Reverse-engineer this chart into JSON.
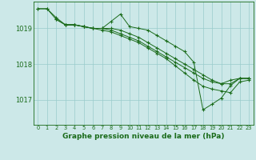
{
  "title": "Graphe pression niveau de la mer (hPa)",
  "bg_color": "#cce8e8",
  "grid_color": "#99cccc",
  "line_color": "#1a6b1a",
  "xlim": [
    -0.5,
    23.5
  ],
  "ylim": [
    1016.3,
    1019.75
  ],
  "yticks": [
    1017,
    1018,
    1019
  ],
  "xticks": [
    0,
    1,
    2,
    3,
    4,
    5,
    6,
    7,
    8,
    9,
    10,
    11,
    12,
    13,
    14,
    15,
    16,
    17,
    18,
    19,
    20,
    21,
    22,
    23
  ],
  "series": [
    {
      "x": [
        0,
        1,
        2,
        3,
        4,
        5,
        6,
        7,
        8,
        9,
        10,
        11,
        12,
        13,
        14,
        15,
        16,
        17,
        18,
        19,
        20,
        21,
        22,
        23
      ],
      "y": [
        1019.55,
        1019.55,
        1019.25,
        1019.1,
        1019.1,
        1019.05,
        1019.0,
        1019.0,
        1019.0,
        1018.95,
        1018.85,
        1018.75,
        1018.6,
        1018.45,
        1018.3,
        1018.15,
        1018.0,
        1017.85,
        1017.7,
        1017.55,
        1017.45,
        1017.55,
        1017.6,
        1017.6
      ]
    },
    {
      "x": [
        0,
        1,
        2,
        3,
        4,
        5,
        6,
        7,
        8,
        9,
        10,
        11,
        12,
        13,
        14,
        15,
        16,
        17,
        18,
        19,
        20,
        21,
        22,
        23
      ],
      "y": [
        1019.55,
        1019.55,
        1019.3,
        1019.1,
        1019.1,
        1019.05,
        1019.0,
        1019.0,
        1019.2,
        1019.4,
        1019.05,
        1019.0,
        1018.95,
        1018.8,
        1018.65,
        1018.5,
        1018.35,
        1018.05,
        1016.72,
        1016.88,
        1017.05,
        1017.4,
        1017.6,
        1017.6
      ]
    },
    {
      "x": [
        2,
        3,
        4,
        5,
        6,
        7,
        8,
        9,
        10,
        11,
        12,
        13,
        14,
        15,
        16,
        17,
        18,
        19,
        20,
        21,
        22,
        23
      ],
      "y": [
        1019.25,
        1019.1,
        1019.1,
        1019.05,
        1019.0,
        1019.0,
        1018.95,
        1018.85,
        1018.75,
        1018.65,
        1018.5,
        1018.35,
        1018.2,
        1018.05,
        1017.9,
        1017.75,
        1017.6,
        1017.5,
        1017.45,
        1017.45,
        1017.6,
        1017.6
      ]
    },
    {
      "x": [
        3,
        4,
        5,
        6,
        7,
        8,
        9,
        10,
        11,
        12,
        13,
        14,
        15,
        16,
        17,
        18,
        19,
        20,
        21,
        22,
        23
      ],
      "y": [
        1019.1,
        1019.1,
        1019.05,
        1019.0,
        1018.95,
        1018.9,
        1018.8,
        1018.7,
        1018.6,
        1018.45,
        1018.3,
        1018.15,
        1017.95,
        1017.75,
        1017.55,
        1017.38,
        1017.3,
        1017.25,
        1017.2,
        1017.5,
        1017.55
      ]
    }
  ]
}
